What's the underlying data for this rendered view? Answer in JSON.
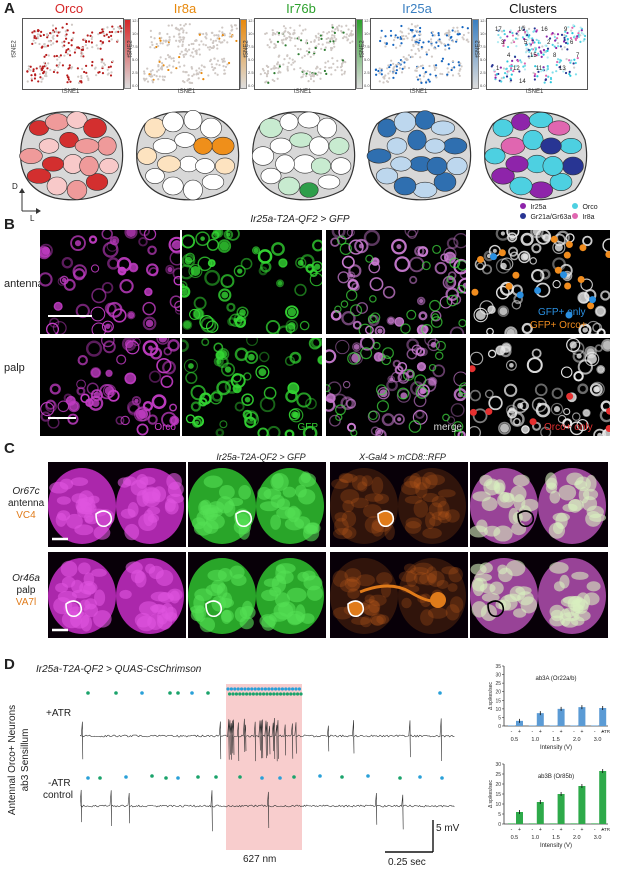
{
  "panels": {
    "A": "A",
    "B": "B",
    "C": "C",
    "D": "D"
  },
  "panel_a": {
    "titles": [
      {
        "text": "Orco",
        "color": "#d62728"
      },
      {
        "text": "Ir8a",
        "color": "#e8890c"
      },
      {
        "text": "Ir76b",
        "color": "#2ca02c"
      },
      {
        "text": "Ir25a",
        "color": "#3a7fc1"
      },
      {
        "text": "Clusters",
        "color": "#111111"
      }
    ],
    "xlabel": "tSNE1",
    "ylabel": "tSNE2",
    "cbar_ticks": [
      "12.5",
      "10.0",
      "7.5",
      "5.0",
      "2.5",
      "0.0"
    ],
    "cluster_numbers": [
      "17",
      "10",
      "16",
      "9",
      "3",
      "5",
      "2",
      "6",
      "4",
      "15",
      "8",
      "7",
      "12",
      "11",
      "13",
      "1",
      "14"
    ],
    "axis_d": "D",
    "axis_l": "L",
    "legend": [
      {
        "label": "Ir25a",
        "color": "#8e24aa"
      },
      {
        "label": "Orco",
        "color": "#4dd0e1"
      },
      {
        "label": "Gr21a/Gr63a",
        "color": "#283593"
      },
      {
        "label": "Ir8a",
        "color": "#e066b0"
      }
    ]
  },
  "panel_b": {
    "genotype": "Ir25a-T2A-QF2 > GFP",
    "row_labels": [
      "antenna",
      "palp"
    ],
    "col_labels": [
      "Orco",
      "GFP",
      "merge"
    ],
    "col_label_colors": [
      "#d03cd0",
      "#33cc33",
      "#dddddd"
    ],
    "antenna_legend": [
      {
        "text": "GFP+ only",
        "color": "#2a8fe0"
      },
      {
        "text": "GFP+ Orco+",
        "color": "#f08c1e"
      }
    ],
    "palp_legend": {
      "text": "Orco+ only",
      "color": "#e53030"
    }
  },
  "panel_c": {
    "genotype_1": "Ir25a-T2A-QF2 > GFP",
    "genotype_2": "X-Gal4 > mCD8::RFP",
    "rows": [
      {
        "receptor": "Or67c",
        "organ": "antenna",
        "glomerulus": "VC4"
      },
      {
        "receptor": "Or46a",
        "organ": "palp",
        "glomerulus": "VA7l"
      }
    ],
    "glomerulus_color": "#e07b1a"
  },
  "panel_d": {
    "genotype": "Ir25a-T2A-QF2 > QUAS-CsChrimson",
    "ylabel_line1": "Antennal Orco+ Neurons",
    "ylabel_line2": "ab3 Sensillum",
    "trace_labels": [
      "+ATR",
      "-ATR",
      "control"
    ],
    "light_label": "627 nm",
    "scale_v": "5 mV",
    "scale_t": "0.25 sec"
  },
  "chart_data": [
    {
      "type": "bar",
      "title": "ab3A (Or22a/b)",
      "xlabel": "Intensity (V)",
      "ylabel": "Δ spikes/sec",
      "ylim": [
        0,
        35
      ],
      "yticks": [
        0,
        5,
        10,
        15,
        20,
        25,
        30,
        35
      ],
      "intensities": [
        "0.5",
        "1.0",
        "1.5",
        "2.0",
        "3.0"
      ],
      "atr_markers": [
        "-",
        "+"
      ],
      "atr_label": "ATR",
      "color": "#5b9bd5",
      "series": [
        {
          "name": "-",
          "values": [
            0.3,
            0.3,
            0.3,
            0.3,
            0.3
          ]
        },
        {
          "name": "+",
          "values": [
            3,
            7.5,
            10,
            11,
            10.5
          ]
        }
      ]
    },
    {
      "type": "bar",
      "title": "ab3B (Or85b)",
      "xlabel": "Intensity (V)",
      "ylabel": "Δ spikes/sec",
      "ylim": [
        0,
        30
      ],
      "yticks": [
        0,
        5,
        10,
        15,
        20,
        25,
        30
      ],
      "intensities": [
        "0.5",
        "1.0",
        "1.5",
        "2.0",
        "3.0"
      ],
      "atr_markers": [
        "-",
        "+"
      ],
      "atr_label": "ATR",
      "color": "#2eaa4a",
      "series": [
        {
          "name": "-",
          "values": [
            0.3,
            0.3,
            0.3,
            0.3,
            0.3
          ]
        },
        {
          "name": "+",
          "values": [
            6,
            11,
            15,
            19,
            26.5
          ]
        }
      ]
    }
  ]
}
